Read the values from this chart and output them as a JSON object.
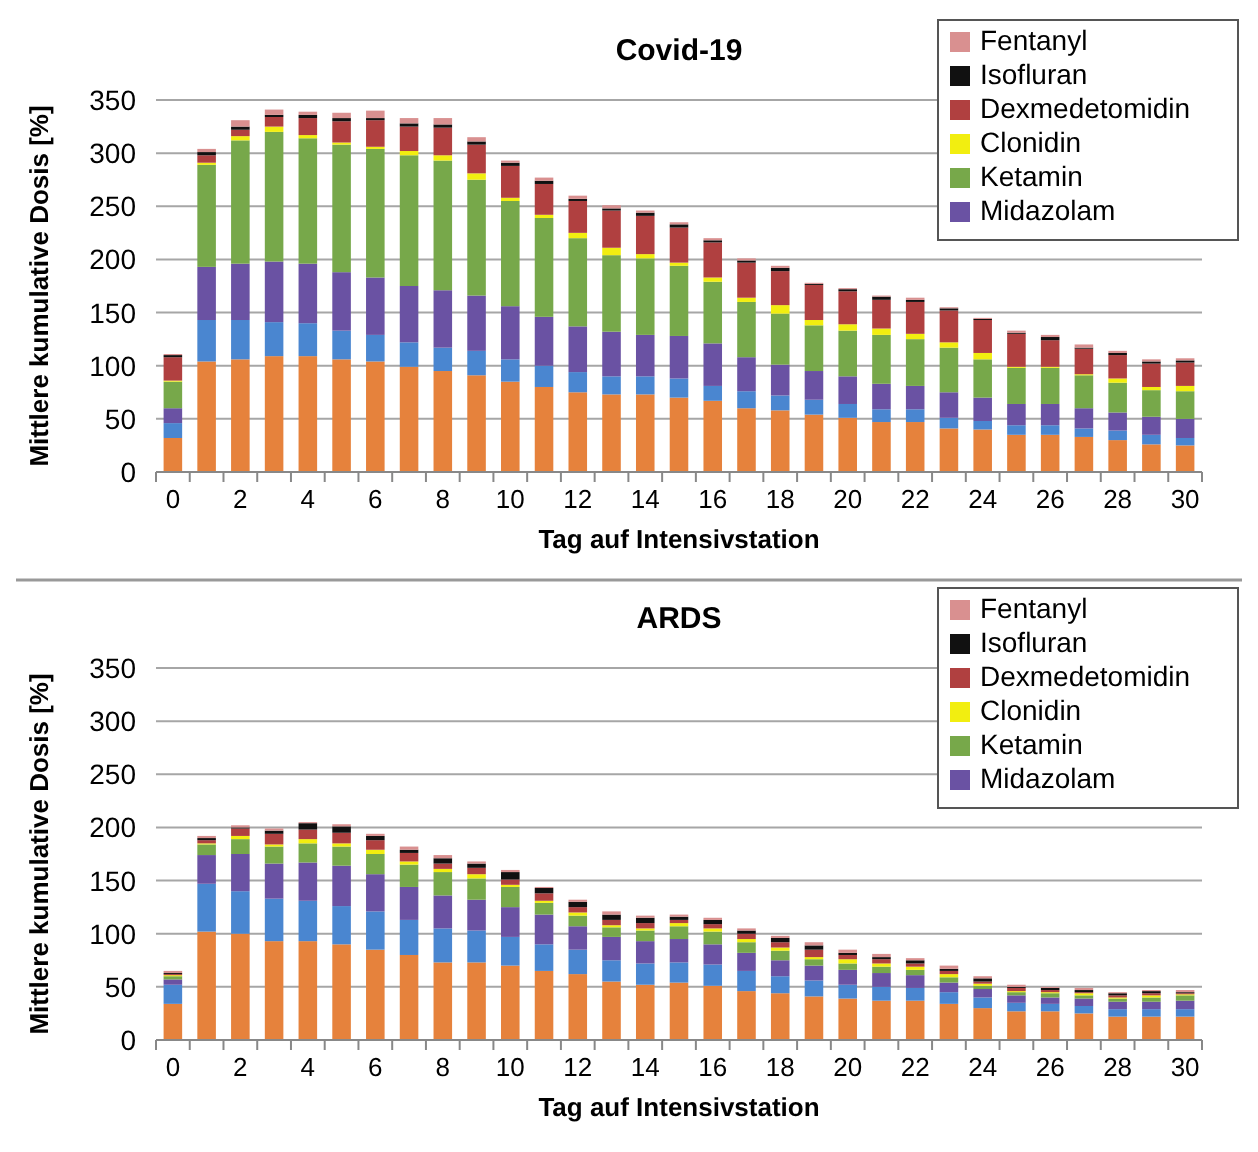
{
  "chart_data": [
    {
      "type": "bar",
      "title": "Covid-19",
      "xlabel": "Tag auf Intensivstation",
      "ylabel": "Mittlere kumulative Dosis [%]",
      "stacked": true,
      "x": [
        0,
        1,
        2,
        3,
        4,
        5,
        6,
        7,
        8,
        9,
        10,
        11,
        12,
        13,
        14,
        15,
        16,
        17,
        18,
        19,
        20,
        21,
        22,
        23,
        24,
        25,
        26,
        27,
        28,
        29,
        30
      ],
      "xlim": [
        -0.5,
        30.5
      ],
      "xticks": [
        0,
        2,
        4,
        6,
        8,
        10,
        12,
        14,
        16,
        18,
        20,
        22,
        24,
        26,
        28,
        30
      ],
      "ylim": [
        0,
        350
      ],
      "yticks": [
        0,
        50,
        100,
        150,
        200,
        250,
        300,
        350
      ],
      "grid": "y",
      "legend": "top right",
      "series": [
        {
          "color": "#e6823c",
          "values": [
            32,
            104,
            106,
            109,
            109,
            106,
            104,
            99,
            95,
            91,
            85,
            80,
            75,
            73,
            73,
            70,
            67,
            60,
            58,
            54,
            51,
            47,
            47,
            41,
            40,
            35,
            35,
            33,
            30,
            26,
            25
          ]
        },
        {
          "color": "#4a86d0",
          "values": [
            14,
            39,
            37,
            32,
            31,
            27,
            25,
            23,
            22,
            23,
            21,
            20,
            19,
            17,
            17,
            18,
            14,
            16,
            14,
            14,
            13,
            12,
            12,
            10,
            8,
            9,
            9,
            8,
            9,
            9,
            7
          ]
        },
        {
          "name": "Midazolam",
          "color": "#6a52a3",
          "values": [
            14,
            50,
            53,
            57,
            56,
            55,
            54,
            53,
            54,
            52,
            50,
            46,
            43,
            42,
            39,
            40,
            40,
            32,
            29,
            27,
            26,
            24,
            22,
            24,
            22,
            20,
            20,
            19,
            17,
            17,
            18
          ]
        },
        {
          "name": "Ketamin",
          "color": "#77a84a",
          "values": [
            25,
            96,
            116,
            122,
            118,
            120,
            121,
            123,
            122,
            109,
            99,
            93,
            83,
            72,
            72,
            66,
            58,
            52,
            48,
            43,
            43,
            46,
            44,
            42,
            36,
            34,
            34,
            31,
            28,
            25,
            26
          ]
        },
        {
          "name": "Clonidin",
          "color": "#f2ee10",
          "values": [
            1,
            2,
            4,
            5,
            3,
            2,
            2,
            4,
            5,
            6,
            3,
            3,
            5,
            7,
            4,
            3,
            4,
            4,
            8,
            5,
            6,
            6,
            5,
            5,
            6,
            1,
            1,
            1,
            4,
            3,
            5
          ]
        },
        {
          "name": "Dexmedetomidin",
          "color": "#b04040",
          "values": [
            22,
            7,
            6,
            9,
            16,
            20,
            25,
            23,
            26,
            27,
            30,
            29,
            30,
            35,
            36,
            33,
            33,
            33,
            32,
            33,
            31,
            27,
            30,
            30,
            31,
            31,
            25,
            24,
            22,
            22,
            22
          ]
        },
        {
          "name": "Isofluran",
          "color": "#111111",
          "values": [
            2,
            3,
            3,
            2,
            3,
            3,
            2,
            3,
            3,
            3,
            3,
            3,
            2,
            2,
            3,
            3,
            2,
            2,
            3,
            1,
            2,
            3,
            2,
            2,
            1,
            1,
            3,
            1,
            2,
            2,
            2
          ]
        },
        {
          "name": "Fentanyl",
          "color": "#d99090",
          "values": [
            1,
            3,
            6,
            5,
            3,
            5,
            7,
            5,
            6,
            4,
            2,
            3,
            3,
            3,
            2,
            2,
            2,
            2,
            2,
            1,
            1,
            1,
            2,
            1,
            1,
            2,
            2,
            3,
            2,
            2,
            2
          ]
        }
      ]
    },
    {
      "type": "bar",
      "title": "ARDS",
      "xlabel": "Tag auf Intensivstation",
      "ylabel": "Mittlere kumulative Dosis [%]",
      "stacked": true,
      "x": [
        0,
        1,
        2,
        3,
        4,
        5,
        6,
        7,
        8,
        9,
        10,
        11,
        12,
        13,
        14,
        15,
        16,
        17,
        18,
        19,
        20,
        21,
        22,
        23,
        24,
        25,
        26,
        27,
        28,
        29,
        30
      ],
      "xlim": [
        -0.5,
        30.5
      ],
      "xticks": [
        0,
        2,
        4,
        6,
        8,
        10,
        12,
        14,
        16,
        18,
        20,
        22,
        24,
        26,
        28,
        30
      ],
      "ylim": [
        0,
        350
      ],
      "yticks": [
        0,
        50,
        100,
        150,
        200,
        250,
        300,
        350
      ],
      "grid": "y",
      "legend": "top right",
      "series": [
        {
          "color": "#e6823c",
          "values": [
            34,
            102,
            100,
            93,
            93,
            90,
            85,
            80,
            73,
            73,
            70,
            65,
            62,
            55,
            52,
            54,
            51,
            46,
            44,
            41,
            39,
            37,
            37,
            34,
            30,
            27,
            27,
            25,
            22,
            22,
            22
          ]
        },
        {
          "color": "#4a86d0",
          "values": [
            18,
            45,
            40,
            40,
            38,
            36,
            36,
            33,
            32,
            30,
            27,
            25,
            23,
            20,
            20,
            19,
            20,
            19,
            16,
            15,
            13,
            13,
            12,
            11,
            10,
            8,
            7,
            7,
            7,
            7,
            7
          ]
        },
        {
          "name": "Midazolam",
          "color": "#6a52a3",
          "values": [
            5,
            27,
            35,
            33,
            36,
            38,
            35,
            31,
            31,
            29,
            28,
            28,
            22,
            22,
            21,
            22,
            19,
            17,
            15,
            14,
            14,
            13,
            12,
            9,
            8,
            7,
            6,
            7,
            7,
            7,
            8
          ]
        },
        {
          "name": "Ketamin",
          "color": "#77a84a",
          "values": [
            3,
            10,
            14,
            16,
            18,
            18,
            19,
            21,
            22,
            20,
            19,
            11,
            10,
            9,
            10,
            12,
            12,
            10,
            9,
            6,
            6,
            6,
            5,
            5,
            3,
            3,
            4,
            3,
            3,
            4,
            5
          ]
        },
        {
          "name": "Clonidin",
          "color": "#f2ee10",
          "values": [
            1,
            1,
            3,
            2,
            4,
            3,
            4,
            3,
            3,
            4,
            2,
            2,
            3,
            2,
            2,
            3,
            3,
            3,
            3,
            2,
            4,
            3,
            3,
            3,
            2,
            1,
            1,
            2,
            1,
            2,
            1
          ]
        },
        {
          "name": "Dexmedetomidin",
          "color": "#b04040",
          "values": [
            1,
            3,
            7,
            10,
            9,
            10,
            9,
            8,
            5,
            6,
            5,
            7,
            5,
            5,
            5,
            3,
            4,
            5,
            5,
            7,
            4,
            4,
            3,
            3,
            2,
            3,
            2,
            1,
            2,
            2,
            1
          ]
        },
        {
          "name": "Isofluran",
          "color": "#111111",
          "values": [
            1,
            2,
            1,
            3,
            6,
            6,
            4,
            3,
            5,
            4,
            7,
            5,
            5,
            5,
            5,
            3,
            4,
            3,
            4,
            4,
            2,
            2,
            3,
            2,
            3,
            1,
            2,
            2,
            2,
            2,
            1
          ]
        },
        {
          "name": "Fentanyl",
          "color": "#d99090",
          "values": [
            2,
            2,
            2,
            2,
            1,
            2,
            2,
            3,
            3,
            2,
            2,
            1,
            2,
            3,
            2,
            2,
            2,
            2,
            2,
            3,
            3,
            3,
            2,
            3,
            2,
            2,
            1,
            2,
            1,
            1,
            2
          ]
        }
      ]
    }
  ]
}
